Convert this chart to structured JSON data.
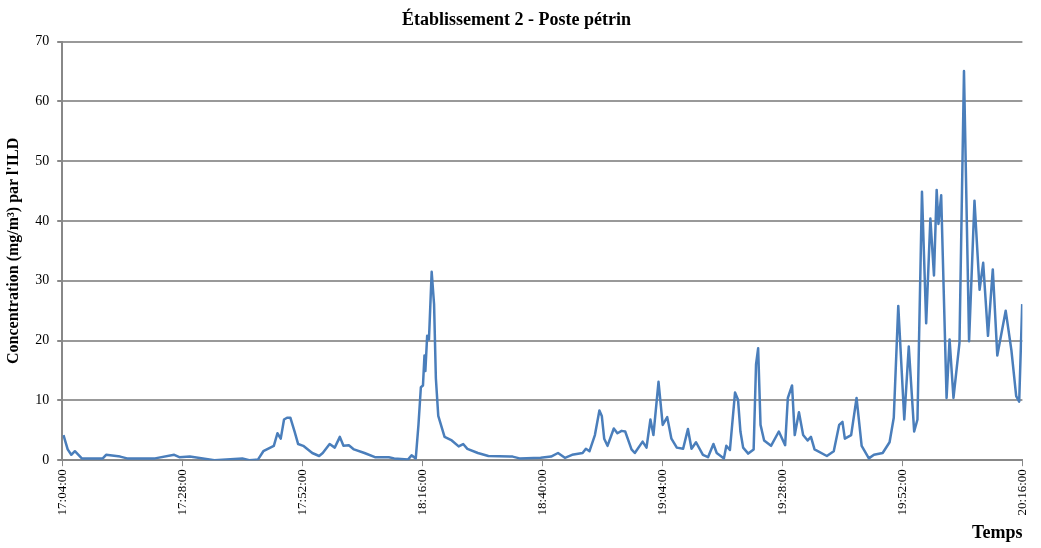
{
  "chart_data": {
    "type": "line",
    "title": "Établissement 2 - Poste pétrin",
    "xlabel": "Temps",
    "ylabel": "Concentration (mg/m³) par l'ILD",
    "xlim": [
      17.0667,
      20.2667
    ],
    "xticks": [
      {
        "value": 17.0667,
        "label": "17:04:00"
      },
      {
        "value": 17.4667,
        "label": "17:28:00"
      },
      {
        "value": 17.8667,
        "label": "17:52:00"
      },
      {
        "value": 18.2667,
        "label": "18:16:00"
      },
      {
        "value": 18.6667,
        "label": "18:40:00"
      },
      {
        "value": 19.0667,
        "label": "19:04:00"
      },
      {
        "value": 19.4667,
        "label": "19:28:00"
      },
      {
        "value": 19.8667,
        "label": "19:52:00"
      },
      {
        "value": 20.2667,
        "label": "20:16:00"
      }
    ],
    "ylim": [
      0,
      70
    ],
    "yticks": [
      0,
      10,
      20,
      30,
      40,
      50,
      60,
      70
    ],
    "grid": "y",
    "legend": false,
    "marker": "none",
    "line_style": "solid",
    "series": [
      {
        "color": "#4a7ebb",
        "x": [
          17.071,
          17.085,
          17.097,
          17.109,
          17.132,
          17.202,
          17.213,
          17.26,
          17.283,
          17.376,
          17.44,
          17.457,
          17.492,
          17.574,
          17.667,
          17.69,
          17.719,
          17.737,
          17.772,
          17.784,
          17.795,
          17.806,
          17.816,
          17.827,
          17.841,
          17.853,
          17.87,
          17.9,
          17.923,
          17.935,
          17.958,
          17.975,
          17.992,
          18.004,
          18.022,
          18.039,
          18.074,
          18.109,
          18.155,
          18.173,
          18.219,
          18.231,
          18.245,
          18.254,
          18.262,
          18.269,
          18.274,
          18.277,
          18.283,
          18.289,
          18.298,
          18.306,
          18.312,
          18.32,
          18.341,
          18.365,
          18.388,
          18.403,
          18.417,
          18.452,
          18.487,
          18.568,
          18.591,
          18.661,
          18.696,
          18.719,
          18.742,
          18.766,
          18.801,
          18.812,
          18.824,
          18.842,
          18.857,
          18.865,
          18.873,
          18.884,
          18.905,
          18.917,
          18.931,
          18.943,
          18.964,
          18.975,
          19.001,
          19.014,
          19.027,
          19.037,
          19.054,
          19.068,
          19.083,
          19.097,
          19.115,
          19.136,
          19.152,
          19.164,
          19.179,
          19.202,
          19.219,
          19.237,
          19.248,
          19.272,
          19.28,
          19.292,
          19.309,
          19.319,
          19.327,
          19.336,
          19.353,
          19.371,
          19.379,
          19.386,
          19.394,
          19.406,
          19.429,
          19.455,
          19.476,
          19.485,
          19.499,
          19.508,
          19.522,
          19.536,
          19.551,
          19.562,
          19.574,
          19.615,
          19.638,
          19.656,
          19.667,
          19.675,
          19.696,
          19.714,
          19.731,
          19.755,
          19.772,
          19.801,
          19.824,
          19.838,
          19.853,
          19.873,
          19.888,
          19.906,
          19.917,
          19.932,
          19.946,
          19.96,
          19.972,
          19.981,
          19.987,
          19.996,
          20.014,
          20.024,
          20.037,
          20.057,
          20.072,
          20.089,
          20.107,
          20.124,
          20.136,
          20.152,
          20.168,
          20.183,
          20.211,
          20.23,
          20.246,
          20.256,
          20.266
        ],
        "values": [
          4.2,
          1.8,
          0.9,
          1.5,
          0.3,
          0.3,
          0.9,
          0.6,
          0.3,
          0.3,
          0.9,
          0.5,
          0.6,
          0,
          0.3,
          0,
          0.1,
          1.5,
          2.4,
          4.5,
          3.6,
          6.8,
          7.1,
          7.1,
          4.8,
          2.7,
          2.4,
          1.2,
          0.7,
          1.2,
          2.7,
          2.1,
          3.9,
          2.4,
          2.5,
          1.8,
          1.2,
          0.5,
          0.5,
          0.3,
          0.1,
          0.8,
          0.3,
          5.9,
          12.2,
          12.5,
          17.5,
          14.9,
          20.8,
          20.2,
          31.5,
          26.1,
          13.7,
          7.4,
          3.9,
          3.3,
          2.3,
          2.7,
          1.9,
          1.2,
          0.7,
          0.6,
          0.3,
          0.4,
          0.6,
          1.2,
          0.4,
          0.9,
          1.2,
          1.9,
          1.5,
          4.2,
          8.3,
          7.4,
          3.6,
          2.4,
          5.3,
          4.5,
          4.9,
          4.8,
          1.8,
          1.2,
          3.1,
          2.1,
          6.8,
          4.2,
          13.1,
          5.9,
          7.2,
          3.6,
          2.1,
          1.9,
          5.2,
          1.9,
          3.0,
          0.9,
          0.5,
          2.7,
          1.2,
          0.3,
          2.4,
          1.7,
          11.3,
          10.1,
          4.8,
          2.1,
          1.1,
          1.8,
          16.0,
          18.7,
          5.9,
          3.3,
          2.4,
          4.8,
          2.5,
          10.4,
          12.5,
          4.2,
          8.0,
          4.2,
          3.3,
          3.9,
          1.8,
          0.7,
          1.5,
          5.9,
          6.4,
          3.6,
          4.2,
          10.4,
          2.4,
          0.3,
          0.9,
          1.2,
          3.0,
          7.1,
          25.8,
          6.8,
          19.0,
          4.8,
          6.8,
          44.9,
          22.9,
          40.4,
          30.9,
          45.2,
          39.5,
          44.3,
          10.4,
          20.2,
          10.4,
          19.6,
          65.1,
          19.9,
          43.4,
          28.5,
          33.0,
          20.8,
          31.9,
          17.5,
          25.0,
          18.4,
          10.7,
          9.8,
          26.1
        ]
      }
    ]
  }
}
